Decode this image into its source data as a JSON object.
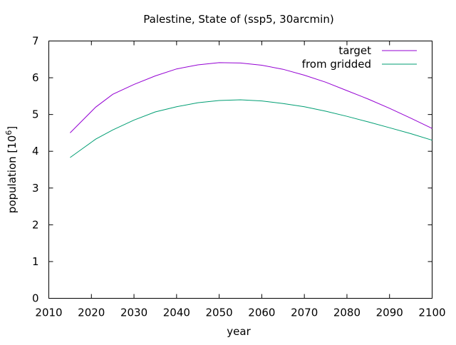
{
  "chart_data": {
    "type": "line",
    "title": "Palestine, State of (ssp5, 30arcmin)",
    "xlabel": "year",
    "ylabel": "population [10^6]",
    "ylabel_base": "population [10",
    "ylabel_exp": "6",
    "ylabel_end": "]",
    "xlim": [
      2010,
      2100
    ],
    "ylim": [
      0,
      7
    ],
    "xticks": [
      2010,
      2020,
      2030,
      2040,
      2050,
      2060,
      2070,
      2080,
      2090,
      2100
    ],
    "yticks": [
      0,
      1,
      2,
      3,
      4,
      5,
      6,
      7
    ],
    "grid": false,
    "legend_position": "top-right",
    "series": [
      {
        "name": "target",
        "color": "#9400d3",
        "x": [
          2015,
          2018,
          2021,
          2025,
          2030,
          2035,
          2040,
          2045,
          2050,
          2055,
          2060,
          2065,
          2070,
          2075,
          2080,
          2085,
          2090,
          2095,
          2100
        ],
        "y": [
          4.5,
          4.85,
          5.2,
          5.55,
          5.82,
          6.05,
          6.24,
          6.35,
          6.41,
          6.4,
          6.34,
          6.23,
          6.07,
          5.88,
          5.65,
          5.42,
          5.17,
          4.9,
          4.62
        ]
      },
      {
        "name": "from gridded",
        "color": "#009e73",
        "x": [
          2015,
          2018,
          2021,
          2025,
          2030,
          2035,
          2040,
          2045,
          2050,
          2055,
          2060,
          2065,
          2070,
          2075,
          2080,
          2085,
          2090,
          2095,
          2100
        ],
        "y": [
          3.83,
          4.08,
          4.33,
          4.58,
          4.85,
          5.07,
          5.21,
          5.32,
          5.38,
          5.4,
          5.37,
          5.3,
          5.21,
          5.09,
          4.95,
          4.8,
          4.64,
          4.48,
          4.3
        ]
      }
    ]
  }
}
